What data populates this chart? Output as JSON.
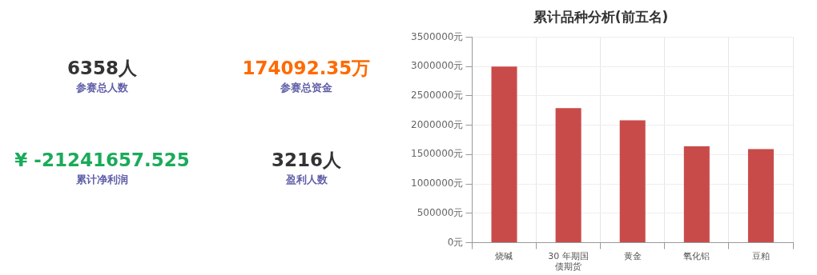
{
  "chart_data": [
    {
      "type": "other",
      "annotations": [
        "6358人",
        "参赛总人数",
        "174092.35万",
        "参赛总资金",
        "¥ -21241657.525",
        "累计净利润",
        "3216人",
        "盈利人数"
      ],
      "colors": [
        "#333333",
        "#ff6a00",
        "#1aab5a",
        "#333333"
      ]
    },
    {
      "type": "bar",
      "title": "累计品种分析(前五名)",
      "categories": [
        "烧碱",
        "30 年期国债期货",
        "黄金",
        "氧化铝",
        "豆粕"
      ],
      "values": [
        3000000,
        2290000,
        2085000,
        1640000,
        1595000
      ],
      "color": "#c84b4a",
      "ylim": [
        0,
        3500000
      ],
      "yticks": [
        {
          "value": 0,
          "label": "0元"
        },
        {
          "value": 500000,
          "label": "500000元"
        },
        {
          "value": 1000000,
          "label": "1000000元"
        },
        {
          "value": 1500000,
          "label": "1500000元"
        },
        {
          "value": 2000000,
          "label": "2000000元"
        },
        {
          "value": 2500000,
          "label": "2500000元"
        },
        {
          "value": 3000000,
          "label": "3000000元"
        },
        {
          "value": 3500000,
          "label": "3500000元"
        }
      ],
      "grid": true,
      "legend": false
    }
  ]
}
